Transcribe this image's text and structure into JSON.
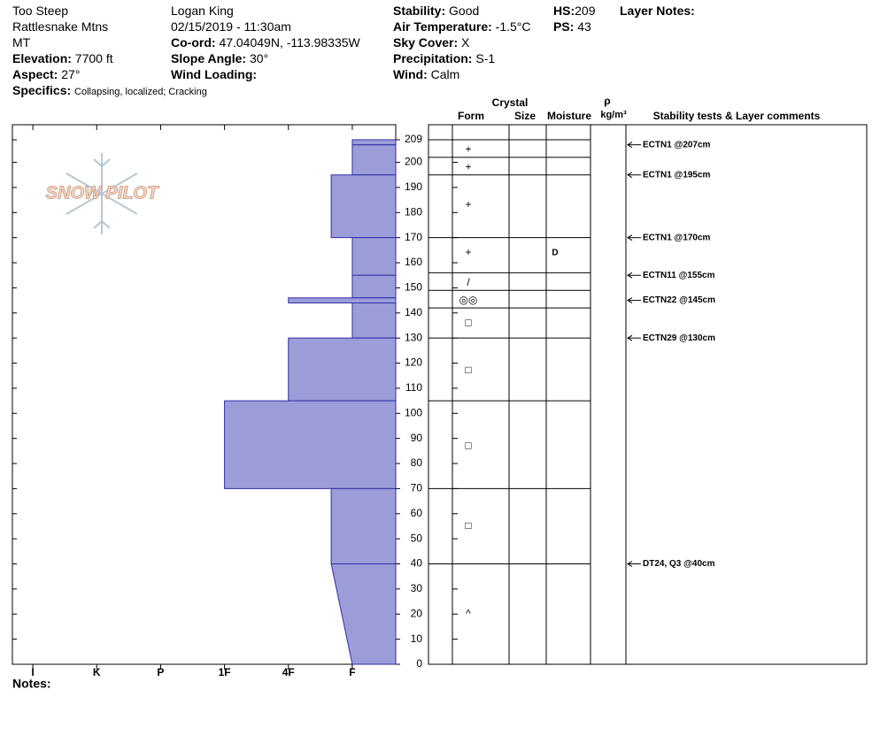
{
  "header": {
    "location": "Too Steep",
    "range": "Rattlesnake Mtns",
    "state": "MT",
    "elevation": {
      "label": "Elevation:",
      "value": "7700 ft"
    },
    "aspect": {
      "label": "Aspect:",
      "value": "27°"
    },
    "specifics": {
      "label": "Specifics:",
      "value": "Collapsing, localized;  Cracking"
    },
    "observer": "Logan King",
    "datetime": "02/15/2019 - 11:30am",
    "coord": {
      "label": "Co-ord:",
      "value": "47.04049N, -113.98335W"
    },
    "slope_angle": {
      "label": "Slope Angle:",
      "value": "30°"
    },
    "wind_loading": {
      "label": "Wind Loading:"
    },
    "stability": {
      "label": "Stability:",
      "value": "Good"
    },
    "air_temperature": {
      "label": "Air Temperature:",
      "value": "-1.5°C"
    },
    "sky_cover": {
      "label": "Sky Cover:",
      "value": "X"
    },
    "precipitation": {
      "label": "Precipitation:",
      "value": "S-1"
    },
    "wind": {
      "label": "Wind:",
      "value": "Calm"
    },
    "hs": {
      "label": "HS:",
      "value": "209"
    },
    "ps": {
      "label": "PS:",
      "value": "43"
    },
    "layer_notes": {
      "label": "Layer Notes:"
    }
  },
  "logo": "SNOW PILOT",
  "hardness_profile": {
    "xlim": [
      -0.32,
      5.68
    ],
    "xticks": [
      {
        "value": 0,
        "label": "I"
      },
      {
        "value": 1,
        "label": "K"
      },
      {
        "value": 2,
        "label": "P"
      },
      {
        "value": 3,
        "label": "1F"
      },
      {
        "value": 4,
        "label": "4F"
      },
      {
        "value": 5,
        "label": "F"
      }
    ],
    "ylim": [
      0,
      215
    ],
    "yticks": [
      0,
      10,
      20,
      30,
      40,
      50,
      60,
      70,
      80,
      90,
      100,
      110,
      120,
      130,
      140,
      150,
      160,
      170,
      180,
      190,
      200,
      209
    ],
    "layers": [
      {
        "top": 209,
        "bottom": 207,
        "hardness_top": 5,
        "hardness_bottom": 5
      },
      {
        "top": 207,
        "bottom": 195,
        "hardness_top": 5,
        "hardness_bottom": 5
      },
      {
        "top": 195,
        "bottom": 170,
        "hardness_top": 4.67,
        "hardness_bottom": 4.67
      },
      {
        "top": 170,
        "bottom": 155,
        "hardness_top": 5,
        "hardness_bottom": 5
      },
      {
        "top": 155,
        "bottom": 146,
        "hardness_top": 5,
        "hardness_bottom": 5
      },
      {
        "top": 146,
        "bottom": 144,
        "hardness_top": 4,
        "hardness_bottom": 4
      },
      {
        "top": 144,
        "bottom": 130,
        "hardness_top": 5,
        "hardness_bottom": 5
      },
      {
        "top": 130,
        "bottom": 105,
        "hardness_top": 4,
        "hardness_bottom": 4
      },
      {
        "top": 105,
        "bottom": 70,
        "hardness_top": 3,
        "hardness_bottom": 3
      },
      {
        "top": 70,
        "bottom": 40,
        "hardness_top": 4.67,
        "hardness_bottom": 4.67
      },
      {
        "top": 40,
        "bottom": 0,
        "hardness_top": 4.67,
        "hardness_bottom": 5
      }
    ]
  },
  "stratigraphy": {
    "headers": {
      "crystal": "Crystal",
      "form": "Form",
      "size": "Size",
      "moisture": "Moisture",
      "rho": "ρ",
      "density_unit": "kg/m³",
      "comments": "Stability tests & Layer comments"
    },
    "boundaries": [
      209,
      202,
      195,
      170,
      156,
      149,
      142,
      130,
      105,
      70,
      40
    ],
    "forms": [
      {
        "depth": 205,
        "symbol": "+"
      },
      {
        "depth": 198,
        "symbol": "+"
      },
      {
        "depth": 183,
        "symbol": "+"
      },
      {
        "depth": 164,
        "symbol": "+"
      },
      {
        "depth": 152,
        "symbol": "/"
      },
      {
        "depth": 145,
        "symbol": "◎◎"
      },
      {
        "depth": 136,
        "symbol": "□"
      },
      {
        "depth": 117,
        "symbol": "□"
      },
      {
        "depth": 87,
        "symbol": "□"
      },
      {
        "depth": 55,
        "symbol": "□"
      },
      {
        "depth": 20,
        "symbol": "^"
      }
    ],
    "moisture": [
      {
        "depth": 164,
        "label": "D"
      }
    ],
    "tests": [
      {
        "depth": 207,
        "label": "ECTN1 @207cm"
      },
      {
        "depth": 195,
        "label": "ECTN1 @195cm"
      },
      {
        "depth": 170,
        "label": "ECTN1 @170cm"
      },
      {
        "depth": 155,
        "label": "ECTN11 @155cm"
      },
      {
        "depth": 145,
        "label": "ECTN22 @145cm"
      },
      {
        "depth": 130,
        "label": "ECTN29 @130cm"
      },
      {
        "depth": 40,
        "label": "DT24, Q3 @40cm"
      }
    ]
  },
  "notes_label": "Notes:"
}
